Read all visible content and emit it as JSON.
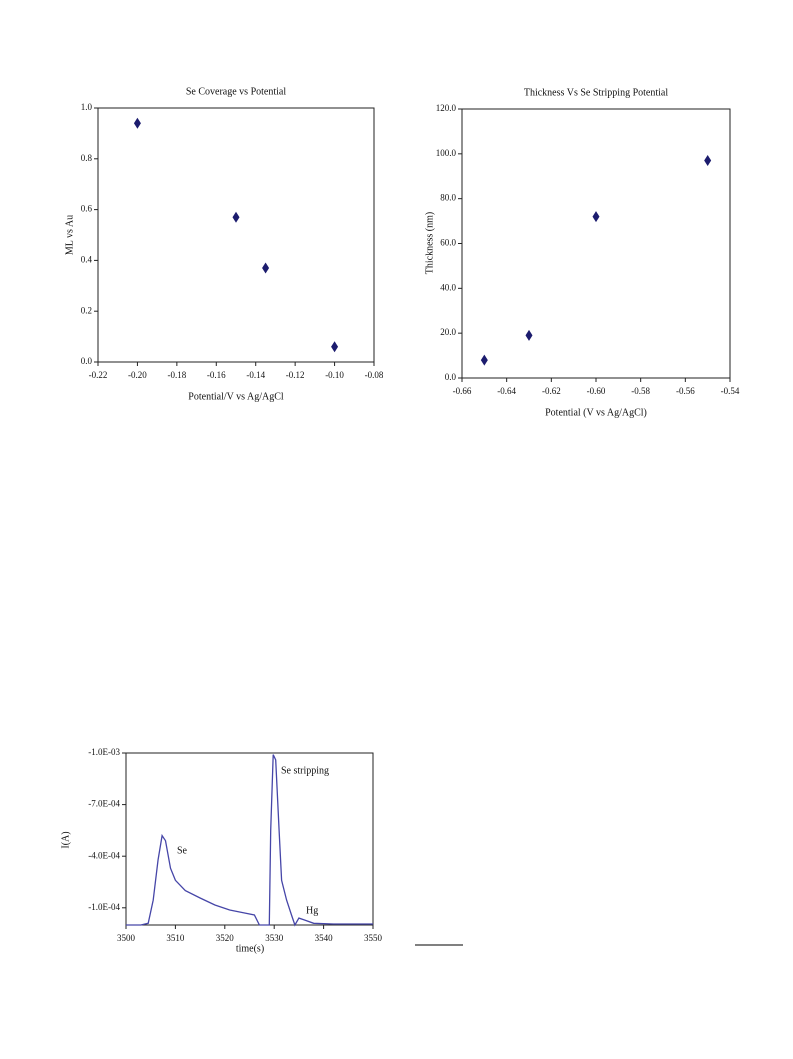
{
  "chart_data": [
    {
      "type": "scatter",
      "title": "Se Coverage vs Potential",
      "x_label": "Potential/V vs Ag/AgCl",
      "y_label": "ML vs Au",
      "x": [
        -0.2,
        -0.15,
        -0.135,
        -0.1
      ],
      "values": [
        0.94,
        0.57,
        0.37,
        0.06
      ],
      "color": "#1c1c6e",
      "xlim": [
        -0.22,
        -0.08
      ],
      "xticks": [
        -0.22,
        {
          "value": -0.2,
          "label": "-0.20"
        },
        -0.18,
        -0.16,
        -0.14,
        -0.12,
        {
          "value": -0.1,
          "label": "-0.10"
        },
        -0.08
      ],
      "ylim": [
        0,
        1
      ],
      "yticks": [
        {
          "value": 0,
          "label": "0.0"
        },
        0.2,
        0.4,
        0.6,
        0.8,
        {
          "value": 1,
          "label": "1.0"
        }
      ]
    },
    {
      "type": "scatter",
      "title": "Thickness Vs Se Stripping Potential",
      "x_label": "Potential (V vs Ag/AgCl)",
      "y_label": "Thickness (nm)",
      "x": [
        -0.65,
        -0.63,
        -0.6,
        -0.55
      ],
      "values": [
        8,
        19,
        72,
        97
      ],
      "color": "#1c1c6e",
      "xlim": [
        -0.66,
        -0.54
      ],
      "xticks": [
        -0.66,
        -0.64,
        -0.62,
        {
          "value": -0.6,
          "label": "-0.60"
        },
        -0.58,
        -0.56,
        -0.54
      ],
      "ylim": [
        0,
        120
      ],
      "yticks": [
        {
          "value": 0,
          "label": "0.0"
        },
        {
          "value": 20,
          "label": "20.0"
        },
        {
          "value": 40,
          "label": "40.0"
        },
        {
          "value": 60,
          "label": "60.0"
        },
        {
          "value": 80,
          "label": "80.0"
        },
        {
          "value": 100,
          "label": "100.0"
        },
        {
          "value": 120,
          "label": "120.0"
        }
      ]
    },
    {
      "type": "line",
      "x_label": "time(s)",
      "y_label": "I(A)",
      "annotations": [
        "Se",
        "Se stripping",
        "Hg"
      ],
      "color": "#4646a8",
      "x": [
        3500,
        3503,
        3504.5,
        3505.5,
        3506.5,
        3507.3,
        3508,
        3509,
        3510,
        3512,
        3515,
        3518,
        3521,
        3524,
        3526,
        3527,
        3529,
        3529.3,
        3529.8,
        3530.3,
        3531,
        3531.5,
        3532.5,
        3533.5,
        3534.2,
        3535,
        3536,
        3538,
        3542,
        3550
      ],
      "values": [
        0,
        0,
        -1e-05,
        -0.000145,
        -0.00038,
        -0.00052,
        -0.00049,
        -0.00033,
        -0.00026,
        -0.0002,
        -0.000157,
        -0.000116,
        -8.7e-05,
        -7e-05,
        -5.8e-05,
        0,
        0,
        -0.00055,
        -0.00099,
        -0.00096,
        -0.00055,
        -0.00026,
        -0.000145,
        -5.8e-05,
        0,
        -4e-05,
        -3e-05,
        -1e-05,
        -6e-06,
        -6e-06
      ],
      "xlim": [
        3500,
        3550
      ],
      "xticks": [
        3500,
        3510,
        3520,
        3530,
        3540,
        3550
      ],
      "ylim": [
        0,
        -0.001
      ],
      "yticks": [
        {
          "value": -0.001,
          "label": "-1.0E-03"
        },
        {
          "value": -0.0007,
          "label": "-7.0E-04"
        },
        {
          "value": -0.0004,
          "label": "-4.0E-04"
        },
        {
          "value": -0.0001,
          "label": "-1.0E-04"
        }
      ]
    }
  ]
}
